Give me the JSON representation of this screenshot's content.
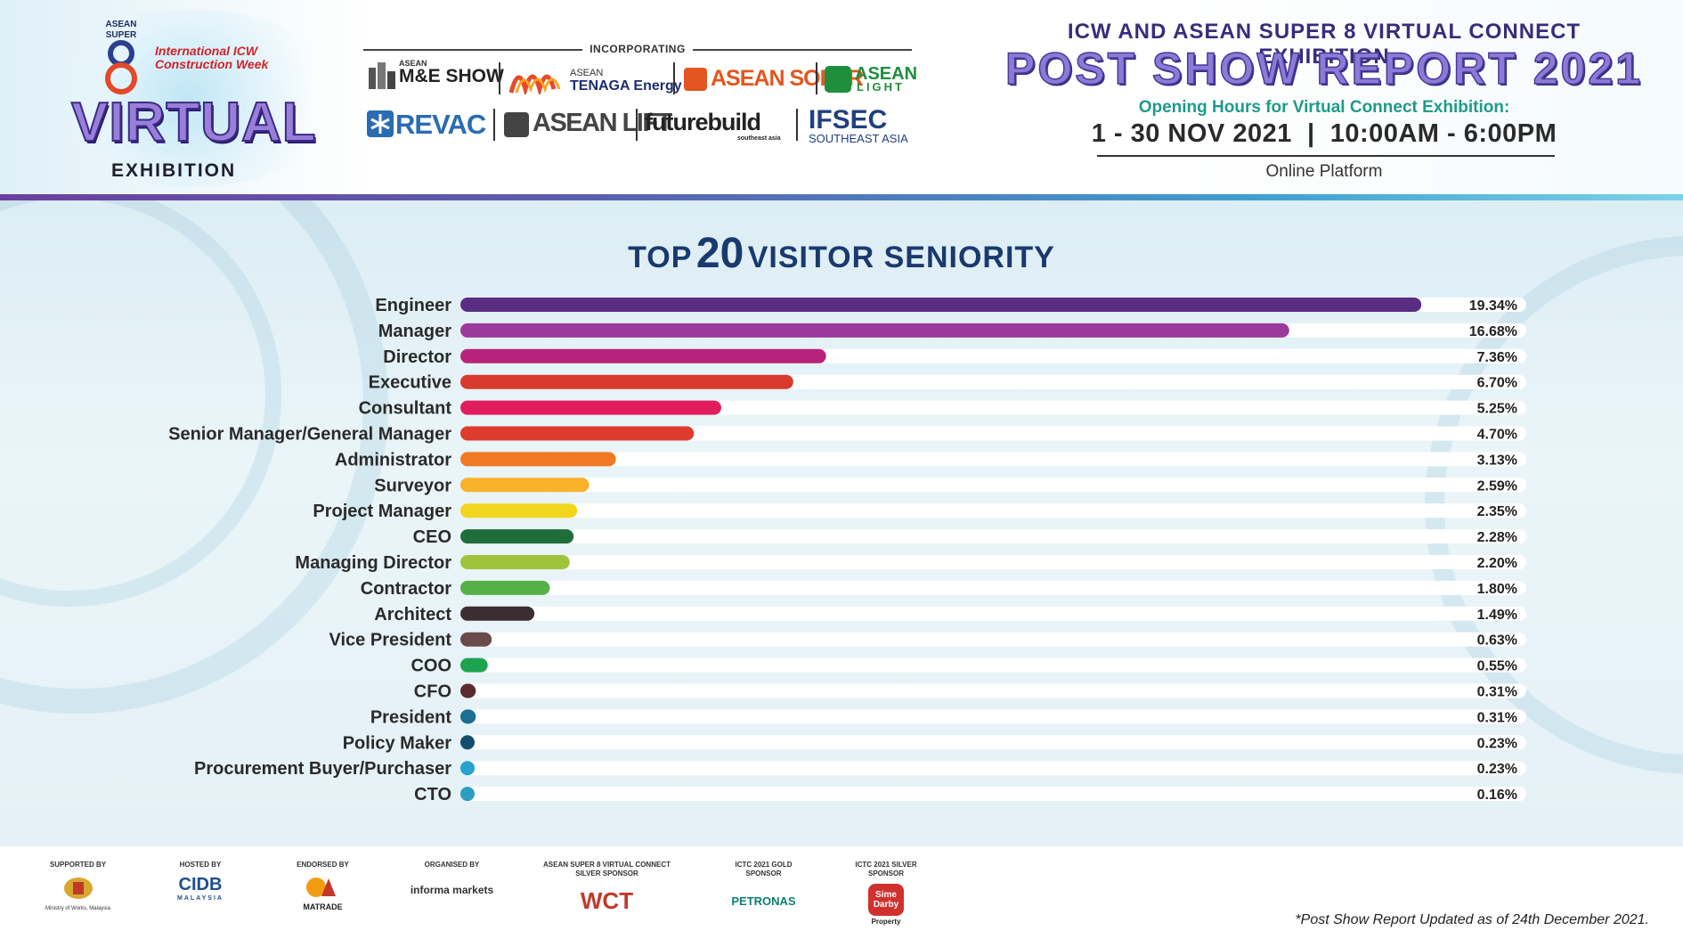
{
  "header": {
    "logo": {
      "asean_super": "ASEAN SUPER",
      "icw_line1": "International ICW",
      "icw_line2": "Construction Week",
      "virtual": "VIRTUAL",
      "exhibition": "EXHIBITION"
    },
    "incorporating_label": "INCORPORATING",
    "brands": {
      "me_show": "M&E SHOW",
      "me_asean": "ASEAN",
      "tenaga_asean": "ASEAN",
      "tenaga_name": "TENAGA Energy",
      "asean_solar": "ASEAN SOLAR",
      "asean_light_1": "ASEAN",
      "asean_light_2": "LIGHT",
      "revac": "REVAC",
      "asean_lift": "ASEAN LIFT",
      "futurebuild": "futurebuild",
      "futurebuild_sub": "southeast asia",
      "ifsec": "IFSEC",
      "ifsec_sub": "SOUTHEAST ASIA"
    },
    "event_title": "ICW AND ASEAN SUPER 8 VIRTUAL CONNECT EXHIBITION",
    "report_title": "POST SHOW REPORT 2021",
    "hours_label": "Opening Hours for Virtual Connect Exhibition:",
    "hours_value": "1 - 30 NOV 2021  |  10:00AM - 6:00PM",
    "platform": "Online Platform"
  },
  "chart_data": {
    "type": "bar",
    "orientation": "horizontal",
    "title_prefix": "TOP",
    "title_number": "20",
    "title_suffix": "VISITOR SENIORITY",
    "categories": [
      "Engineer",
      "Manager",
      "Director",
      "Executive",
      "Consultant",
      "Senior Manager/General Manager",
      "Administrator",
      "Surveyor",
      "Project Manager",
      "CEO",
      "Managing Director",
      "Contractor",
      "Architect",
      "Vice President",
      "COO",
      "CFO",
      "President",
      "Policy Maker",
      "Procurement Buyer/Purchaser",
      "CTO"
    ],
    "values": [
      19.34,
      16.68,
      7.36,
      6.7,
      5.25,
      4.7,
      3.13,
      2.59,
      2.35,
      2.28,
      2.2,
      1.8,
      1.49,
      0.63,
      0.55,
      0.31,
      0.31,
      0.23,
      0.23,
      0.16
    ],
    "value_labels": [
      "19.34%",
      "16.68%",
      "7.36%",
      "6.70%",
      "5.25%",
      "4.70%",
      "3.13%",
      "2.59%",
      "2.35%",
      "2.28%",
      "2.20%",
      "1.80%",
      "1.49%",
      "0.63%",
      "0.55%",
      "0.31%",
      "0.31%",
      "0.23%",
      "0.23%",
      "0.16%"
    ],
    "colors": [
      "#5b2d82",
      "#9b3a9a",
      "#b7237a",
      "#d93a2e",
      "#e11d5e",
      "#dc3b2d",
      "#f07a23",
      "#f9b12a",
      "#f2d51c",
      "#1f6e3a",
      "#9dc43b",
      "#55b047",
      "#3a2e33",
      "#6b4a4a",
      "#1ea44f",
      "#5a2a2e",
      "#1b6f94",
      "#144e6e",
      "#26a3cf",
      "#2b9ec2"
    ],
    "track_color": "#ffffff",
    "grid": false
  },
  "footer": {
    "sponsors": [
      {
        "label": "SUPPORTED BY",
        "name": "Ministry of Works, Malaysia"
      },
      {
        "label": "HOSTED BY",
        "name": "CIDB"
      },
      {
        "label": "ENDORSED BY",
        "name": "MATRADE"
      },
      {
        "label": "ORGANISED BY",
        "name": "informa markets"
      },
      {
        "label": "ASEAN SUPER 8 VIRTUAL CONNECT SILVER SPONSOR",
        "name": "WCT"
      },
      {
        "label": "ICTC 2021 GOLD SPONSOR",
        "name": "PETRONAS"
      },
      {
        "label": "ICTC 2021 SILVER SPONSOR",
        "name": "Sime Darby"
      }
    ],
    "sime_darby_sub": "Property",
    "cidb_sub": "MALAYSIA",
    "footnote": "*Post Show Report Updated as of 24th December 2021."
  }
}
